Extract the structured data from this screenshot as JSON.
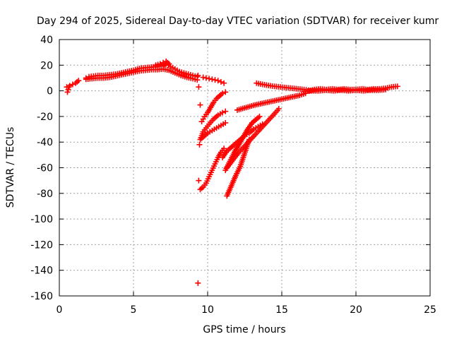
{
  "chart_data": {
    "type": "scatter",
    "title": "Day 294 of 2025, Sidereal Day-to-day VTEC variation (SDTVAR) for receiver kumr",
    "xlabel": "GPS time / hours",
    "ylabel": "SDTVAR / TECUs",
    "xlim": [
      0,
      25
    ],
    "ylim": [
      -160,
      40
    ],
    "xticks": [
      0,
      5,
      10,
      15,
      20,
      25
    ],
    "yticks": [
      -160,
      -140,
      -120,
      -100,
      -80,
      -60,
      -40,
      -20,
      0,
      20,
      40
    ],
    "grid": true,
    "marker": "+",
    "color": "#ff0000",
    "series": [
      {
        "name": "early-rise",
        "x": [
          0.5,
          0.7,
          0.9,
          1.1,
          1.3
        ],
        "y": [
          3,
          4,
          5,
          6,
          8
        ]
      },
      {
        "name": "early-rise-lower",
        "x": [
          0.55,
          0.6,
          0.65
        ],
        "y": [
          -1,
          1,
          3
        ]
      },
      {
        "name": "main-band",
        "x": [
          1.8,
          2.0,
          2.3,
          2.6,
          3.0,
          3.4,
          3.8,
          4.2,
          4.6,
          5.0,
          5.4,
          5.8,
          6.2,
          6.6,
          7.0,
          7.2,
          7.5,
          7.8,
          8.1,
          8.4,
          8.7,
          9.0,
          9.3
        ],
        "y": [
          10,
          11,
          11.5,
          12,
          12,
          12.5,
          13,
          14,
          15,
          16,
          17.5,
          18,
          18.5,
          19,
          19.5,
          21,
          19,
          17,
          15,
          14,
          13,
          12,
          11
        ]
      },
      {
        "name": "main-band-lower",
        "x": [
          1.8,
          2.2,
          2.6,
          3.0,
          3.4,
          3.8,
          4.2,
          4.6,
          5.0,
          5.4,
          5.8,
          6.2,
          6.6,
          7.0,
          7.4,
          7.8,
          8.2,
          8.6,
          9.0,
          9.3
        ],
        "y": [
          9,
          9.5,
          10,
          10,
          10.5,
          11.5,
          12.5,
          13.5,
          14.5,
          15.5,
          16,
          16.5,
          16.5,
          17,
          16,
          14,
          12,
          10.5,
          9.5,
          8.5
        ]
      },
      {
        "name": "main-band-upper",
        "x": [
          6.5,
          6.8,
          7.0,
          7.2,
          7.4
        ],
        "y": [
          20,
          21,
          22,
          23,
          21
        ]
      },
      {
        "name": "outliers-9.4",
        "x": [
          9.35,
          9.4,
          9.45,
          9.5,
          9.4,
          9.35
        ],
        "y": [
          -150,
          -70,
          -42,
          -11,
          3,
          12
        ]
      },
      {
        "name": "arc-a",
        "x": [
          9.7,
          9.9,
          10.1,
          10.3,
          10.5,
          10.7,
          10.9,
          11.1
        ],
        "y": [
          10.5,
          10,
          9.5,
          9,
          8.5,
          8,
          7,
          6
        ]
      },
      {
        "name": "arc-b",
        "x": [
          9.6,
          9.7,
          9.8,
          10.0,
          10.2,
          10.4,
          10.6,
          10.8,
          11.0,
          11.2
        ],
        "y": [
          -24,
          -22,
          -20,
          -17,
          -13,
          -9,
          -6,
          -4,
          -2,
          -1
        ]
      },
      {
        "name": "arc-c",
        "x": [
          9.5,
          9.6,
          9.7,
          9.9,
          10.1,
          10.4,
          10.7,
          11.0,
          11.2
        ],
        "y": [
          -38,
          -35,
          -32,
          -29,
          -26,
          -22,
          -19,
          -17,
          -16
        ]
      },
      {
        "name": "arc-d",
        "x": [
          9.6,
          9.8,
          10.0,
          10.3,
          10.6,
          10.9,
          11.2
        ],
        "y": [
          -37,
          -35,
          -33,
          -31,
          -29,
          -27,
          -25
        ]
      },
      {
        "name": "arc-e",
        "x": [
          9.5,
          9.7,
          9.9,
          10.1,
          10.3,
          10.5,
          10.7,
          10.9,
          11.1
        ],
        "y": [
          -77,
          -75,
          -72,
          -67,
          -62,
          -57,
          -52,
          -48,
          -45
        ]
      },
      {
        "name": "arc-f",
        "x": [
          11.2,
          11.5,
          11.8,
          12.1,
          12.4,
          12.7,
          13.0,
          13.3,
          13.5
        ],
        "y": [
          -62,
          -55,
          -48,
          -42,
          -36,
          -30,
          -25,
          -22,
          -20
        ]
      },
      {
        "name": "arc-g",
        "x": [
          11.3,
          11.6,
          11.9,
          12.2,
          12.4,
          12.6,
          12.8
        ],
        "y": [
          -82,
          -74,
          -66,
          -59,
          -52,
          -45,
          -38
        ]
      },
      {
        "name": "arc-h",
        "x": [
          11.3,
          11.7,
          12.1,
          12.5,
          12.9,
          13.3,
          13.7,
          14.1,
          14.5,
          14.8
        ],
        "y": [
          -60,
          -54,
          -48,
          -43,
          -38,
          -33,
          -28,
          -23,
          -18,
          -14
        ]
      },
      {
        "name": "arc-i",
        "x": [
          11.0,
          11.3,
          11.6,
          11.9,
          12.2,
          12.5,
          12.8,
          13.1,
          13.4,
          13.7
        ],
        "y": [
          -52,
          -47,
          -44,
          -41,
          -38,
          -35,
          -33,
          -30,
          -28,
          -26
        ]
      },
      {
        "name": "rise-to-zero",
        "x": [
          12.0,
          12.6,
          13.2,
          13.8,
          14.4,
          15.0,
          15.6,
          16.2,
          16.6
        ],
        "y": [
          -15,
          -13,
          -11,
          -9.5,
          -8,
          -6.5,
          -5,
          -3.5,
          -2
        ]
      },
      {
        "name": "decay-band",
        "x": [
          13.3,
          13.7,
          14.1,
          14.5,
          14.9,
          15.3,
          15.7,
          16.1,
          16.5,
          16.8
        ],
        "y": [
          6,
          5,
          4.2,
          3.5,
          3,
          2.5,
          2,
          1.5,
          1,
          0.5
        ]
      },
      {
        "name": "flat-tail",
        "x": [
          16.8,
          17.2,
          17.6,
          18.0,
          18.4,
          18.8,
          19.2,
          19.6,
          20.0,
          20.4,
          20.8,
          21.2,
          21.6,
          22.0,
          22.4,
          22.8
        ],
        "y": [
          0,
          1,
          1.5,
          1,
          1.5,
          1,
          1.5,
          1,
          1,
          1.5,
          1,
          1.5,
          1.5,
          2,
          3,
          3.5
        ]
      },
      {
        "name": "flat-tail-lower",
        "x": [
          16.5,
          17.0,
          17.5,
          18.0,
          18.5,
          19.0,
          19.5,
          20.0,
          20.5,
          21.0,
          21.5,
          22.0
        ],
        "y": [
          -0.5,
          0,
          0,
          0.5,
          0,
          0.5,
          0,
          0.5,
          0,
          0.5,
          0.5,
          1
        ]
      }
    ]
  }
}
